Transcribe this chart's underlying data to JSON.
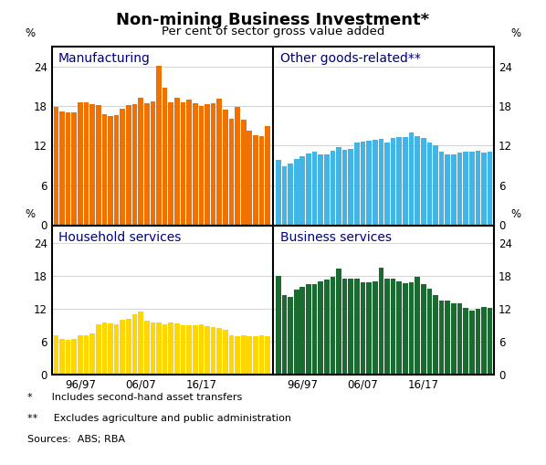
{
  "title": "Non-mining Business Investment*",
  "subtitle": "Per cent of sector gross value added",
  "footnote1": "*      Includes second-hand asset transfers",
  "footnote2": "**     Excludes agriculture and public administration",
  "footnote3": "Sources:  ABS; RBA",
  "panels": [
    {
      "label": "Manufacturing",
      "color": "#F07000",
      "values": [
        17.8,
        17.1,
        17.0,
        17.0,
        18.5,
        18.6,
        18.2,
        18.1,
        16.8,
        16.5,
        16.6,
        17.6,
        18.1,
        18.2,
        19.2,
        18.4,
        18.7,
        24.1,
        20.7,
        18.6,
        19.2,
        18.6,
        18.9,
        18.4,
        18.0,
        18.3,
        18.4,
        19.1,
        17.4,
        16.0,
        17.8,
        15.9,
        14.3,
        13.5,
        13.4,
        14.9
      ]
    },
    {
      "label": "Other goods-related**",
      "color": "#41B6E6",
      "values": [
        9.8,
        8.8,
        9.3,
        10.0,
        10.4,
        10.8,
        11.0,
        10.7,
        10.6,
        11.2,
        11.8,
        11.4,
        11.5,
        12.5,
        12.6,
        12.7,
        12.9,
        13.0,
        12.5,
        13.2,
        13.3,
        13.3,
        13.9,
        13.4,
        13.1,
        12.5,
        12.0,
        11.0,
        10.6,
        10.7,
        10.9,
        11.0,
        11.1,
        11.2,
        10.9,
        11.0
      ]
    },
    {
      "label": "Household services",
      "color": "#FFD700",
      "values": [
        7.2,
        6.5,
        6.3,
        6.4,
        7.2,
        7.2,
        7.4,
        9.2,
        9.5,
        9.3,
        9.2,
        10.0,
        10.1,
        10.9,
        11.5,
        9.8,
        9.5,
        9.5,
        9.2,
        9.4,
        9.3,
        9.0,
        9.0,
        8.9,
        9.1,
        8.8,
        8.6,
        8.5,
        8.1,
        7.2,
        7.0,
        7.2,
        7.0,
        7.0,
        7.1,
        7.0
      ]
    },
    {
      "label": "Business services",
      "color": "#1A6B30",
      "values": [
        18.0,
        14.5,
        14.2,
        15.5,
        16.0,
        16.5,
        16.5,
        17.0,
        17.3,
        17.8,
        19.3,
        17.5,
        17.5,
        17.5,
        16.8,
        16.8,
        17.0,
        19.5,
        17.4,
        17.4,
        16.9,
        16.7,
        16.8,
        17.8,
        16.5,
        15.6,
        14.5,
        13.5,
        13.5,
        13.0,
        13.0,
        12.1,
        11.7,
        12.0,
        12.3,
        12.1
      ]
    }
  ],
  "ylim": [
    0,
    27
  ],
  "yticks": [
    0,
    6,
    12,
    18,
    24
  ],
  "ytick_labels": [
    "0",
    "6",
    "12",
    "18",
    "24"
  ],
  "x_tick_positions": [
    4,
    14,
    24
  ],
  "x_tick_labels": [
    "96/97",
    "06/07",
    "16/17"
  ],
  "n_bars": 36,
  "background_color": "#ffffff",
  "grid_color": "#c0c0c0",
  "border_color": "#000000",
  "title_fontsize": 13,
  "subtitle_fontsize": 9.5,
  "label_fontsize": 10,
  "tick_fontsize": 8.5,
  "footnote_fontsize": 8,
  "label_color": "#000080"
}
